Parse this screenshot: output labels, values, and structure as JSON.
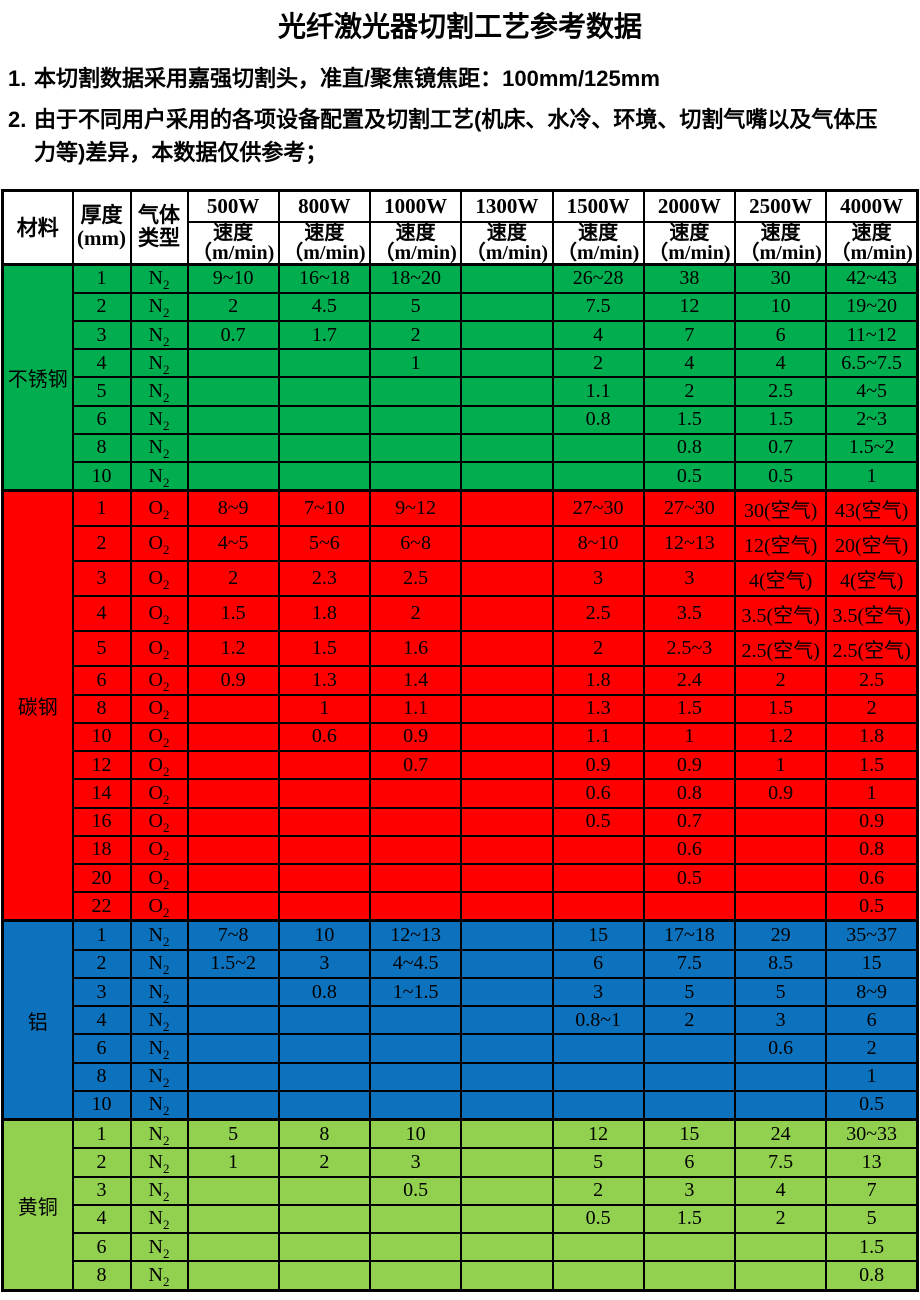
{
  "title": "光纤激光器切割工艺参考数据",
  "notes": [
    {
      "num": "1.",
      "lines": [
        "本切割数据采用嘉强切割头，准直/聚焦镜焦距：100mm/125mm"
      ]
    },
    {
      "num": "2.",
      "lines": [
        "由于不同用户采用的各项设备配置及切割工艺(机床、水冷、环境、切割气嘴以及气体压",
        "力等)差异，本数据仅供参考；"
      ]
    }
  ],
  "table": {
    "col_headers": {
      "material": "材料",
      "thickness_line1": "厚度",
      "thickness_line2": "(mm)",
      "gas_line1": "气体",
      "gas_line2": "类型",
      "powers": [
        "500W",
        "800W",
        "1000W",
        "1300W",
        "1500W",
        "2000W",
        "2500W",
        "4000W"
      ],
      "speed_line1": "速度",
      "speed_line2": "（m/min)"
    },
    "sections": [
      {
        "material": "不锈钢",
        "color": "#00ae50",
        "rows": [
          {
            "thickness": "1",
            "gas": "N2",
            "speeds": [
              "9~10",
              "16~18",
              "18~20",
              "",
              "26~28",
              "38",
              "30",
              "42~43"
            ]
          },
          {
            "thickness": "2",
            "gas": "N2",
            "speeds": [
              "2",
              "4.5",
              "5",
              "",
              "7.5",
              "12",
              "10",
              "19~20"
            ]
          },
          {
            "thickness": "3",
            "gas": "N2",
            "speeds": [
              "0.7",
              "1.7",
              "2",
              "",
              "4",
              "7",
              "6",
              "11~12"
            ]
          },
          {
            "thickness": "4",
            "gas": "N2",
            "speeds": [
              "",
              "",
              "1",
              "",
              "2",
              "4",
              "4",
              "6.5~7.5"
            ]
          },
          {
            "thickness": "5",
            "gas": "N2",
            "speeds": [
              "",
              "",
              "",
              "",
              "1.1",
              "2",
              "2.5",
              "4~5"
            ]
          },
          {
            "thickness": "6",
            "gas": "N2",
            "speeds": [
              "",
              "",
              "",
              "",
              "0.8",
              "1.5",
              "1.5",
              "2~3"
            ]
          },
          {
            "thickness": "8",
            "gas": "N2",
            "speeds": [
              "",
              "",
              "",
              "",
              "",
              "0.8",
              "0.7",
              "1.5~2"
            ]
          },
          {
            "thickness": "10",
            "gas": "N2",
            "speeds": [
              "",
              "",
              "",
              "",
              "",
              "0.5",
              "0.5",
              "1"
            ]
          }
        ]
      },
      {
        "material": "碳钢",
        "color": "#ff0000",
        "rows": [
          {
            "thickness": "1",
            "gas": "O2",
            "speeds": [
              "8~9",
              "7~10",
              "9~12",
              "",
              "27~30",
              "27~30",
              "30(空气)",
              "43(空气)"
            ]
          },
          {
            "thickness": "2",
            "gas": "O2",
            "speeds": [
              "4~5",
              "5~6",
              "6~8",
              "",
              "8~10",
              "12~13",
              "12(空气)",
              "20(空气)"
            ]
          },
          {
            "thickness": "3",
            "gas": "O2",
            "speeds": [
              "2",
              "2.3",
              "2.5",
              "",
              "3",
              "3",
              "4(空气)",
              "4(空气)"
            ]
          },
          {
            "thickness": "4",
            "gas": "O2",
            "speeds": [
              "1.5",
              "1.8",
              "2",
              "",
              "2.5",
              "3.5",
              "3.5(空气)",
              "3.5(空气)"
            ]
          },
          {
            "thickness": "5",
            "gas": "O2",
            "speeds": [
              "1.2",
              "1.5",
              "1.6",
              "",
              "2",
              "2.5~3",
              "2.5(空气)",
              "2.5(空气)"
            ]
          },
          {
            "thickness": "6",
            "gas": "O2",
            "speeds": [
              "0.9",
              "1.3",
              "1.4",
              "",
              "1.8",
              "2.4",
              "2",
              "2.5"
            ]
          },
          {
            "thickness": "8",
            "gas": "O2",
            "speeds": [
              "",
              "1",
              "1.1",
              "",
              "1.3",
              "1.5",
              "1.5",
              "2"
            ]
          },
          {
            "thickness": "10",
            "gas": "O2",
            "speeds": [
              "",
              "0.6",
              "0.9",
              "",
              "1.1",
              "1",
              "1.2",
              "1.8"
            ]
          },
          {
            "thickness": "12",
            "gas": "O2",
            "speeds": [
              "",
              "",
              "0.7",
              "",
              "0.9",
              "0.9",
              "1",
              "1.5"
            ]
          },
          {
            "thickness": "14",
            "gas": "O2",
            "speeds": [
              "",
              "",
              "",
              "",
              "0.6",
              "0.8",
              "0.9",
              "1"
            ]
          },
          {
            "thickness": "16",
            "gas": "O2",
            "speeds": [
              "",
              "",
              "",
              "",
              "0.5",
              "0.7",
              "",
              "0.9"
            ]
          },
          {
            "thickness": "18",
            "gas": "O2",
            "speeds": [
              "",
              "",
              "",
              "",
              "",
              "0.6",
              "",
              "0.8"
            ]
          },
          {
            "thickness": "20",
            "gas": "O2",
            "speeds": [
              "",
              "",
              "",
              "",
              "",
              "0.5",
              "",
              "0.6"
            ]
          },
          {
            "thickness": "22",
            "gas": "O2",
            "speeds": [
              "",
              "",
              "",
              "",
              "",
              "",
              "",
              "0.5"
            ]
          }
        ]
      },
      {
        "material": "铝",
        "color": "#0d72bd",
        "rows": [
          {
            "thickness": "1",
            "gas": "N2",
            "speeds": [
              "7~8",
              "10",
              "12~13",
              "",
              "15",
              "17~18",
              "29",
              "35~37"
            ]
          },
          {
            "thickness": "2",
            "gas": "N2",
            "speeds": [
              "1.5~2",
              "3",
              "4~4.5",
              "",
              "6",
              "7.5",
              "8.5",
              "15"
            ]
          },
          {
            "thickness": "3",
            "gas": "N2",
            "speeds": [
              "",
              "0.8",
              "1~1.5",
              "",
              "3",
              "5",
              "5",
              "8~9"
            ]
          },
          {
            "thickness": "4",
            "gas": "N2",
            "speeds": [
              "",
              "",
              "",
              "",
              "0.8~1",
              "2",
              "3",
              "6"
            ]
          },
          {
            "thickness": "6",
            "gas": "N2",
            "speeds": [
              "",
              "",
              "",
              "",
              "",
              "",
              "0.6",
              "2"
            ]
          },
          {
            "thickness": "8",
            "gas": "N2",
            "speeds": [
              "",
              "",
              "",
              "",
              "",
              "",
              "",
              "1"
            ]
          },
          {
            "thickness": "10",
            "gas": "N2",
            "speeds": [
              "",
              "",
              "",
              "",
              "",
              "",
              "",
              "0.5"
            ]
          }
        ]
      },
      {
        "material": "黄铜",
        "color": "#92d050",
        "rows": [
          {
            "thickness": "1",
            "gas": "N2",
            "speeds": [
              "5",
              "8",
              "10",
              "",
              "12",
              "15",
              "24",
              "30~33"
            ]
          },
          {
            "thickness": "2",
            "gas": "N2",
            "speeds": [
              "1",
              "2",
              "3",
              "",
              "5",
              "6",
              "7.5",
              "13"
            ]
          },
          {
            "thickness": "3",
            "gas": "N2",
            "speeds": [
              "",
              "",
              "0.5",
              "",
              "2",
              "3",
              "4",
              "7"
            ]
          },
          {
            "thickness": "4",
            "gas": "N2",
            "speeds": [
              "",
              "",
              "",
              "",
              "0.5",
              "1.5",
              "2",
              "5"
            ]
          },
          {
            "thickness": "6",
            "gas": "N2",
            "speeds": [
              "",
              "",
              "",
              "",
              "",
              "",
              "",
              "1.5"
            ]
          },
          {
            "thickness": "8",
            "gas": "N2",
            "speeds": [
              "",
              "",
              "",
              "",
              "",
              "",
              "",
              "0.8"
            ]
          }
        ]
      }
    ]
  }
}
